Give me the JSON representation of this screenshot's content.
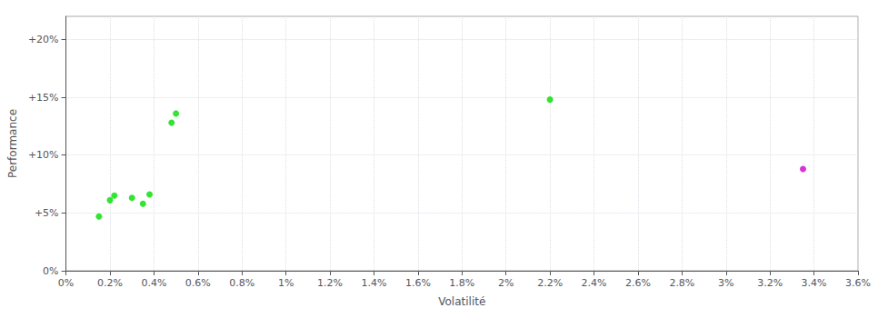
{
  "chart_data": {
    "type": "scatter",
    "xlabel": "Volatilité",
    "ylabel": "Performance",
    "xlim": [
      0,
      0.036
    ],
    "ylim": [
      0,
      0.22
    ],
    "xticks": [
      {
        "value": 0.0,
        "label": "0%"
      },
      {
        "value": 0.002,
        "label": "0.2%"
      },
      {
        "value": 0.004,
        "label": "0.4%"
      },
      {
        "value": 0.006,
        "label": "0.6%"
      },
      {
        "value": 0.008,
        "label": "0.8%"
      },
      {
        "value": 0.01,
        "label": "1%"
      },
      {
        "value": 0.012,
        "label": "1.2%"
      },
      {
        "value": 0.014,
        "label": "1.4%"
      },
      {
        "value": 0.016,
        "label": "1.6%"
      },
      {
        "value": 0.018,
        "label": "1.8%"
      },
      {
        "value": 0.02,
        "label": "2%"
      },
      {
        "value": 0.022,
        "label": "2.2%"
      },
      {
        "value": 0.024,
        "label": "2.4%"
      },
      {
        "value": 0.026,
        "label": "2.6%"
      },
      {
        "value": 0.028,
        "label": "2.8%"
      },
      {
        "value": 0.03,
        "label": "3%"
      },
      {
        "value": 0.032,
        "label": "3.2%"
      },
      {
        "value": 0.034,
        "label": "3.4%"
      },
      {
        "value": 0.036,
        "label": "3.6%"
      }
    ],
    "yticks": [
      {
        "value": 0.0,
        "label": "0%"
      },
      {
        "value": 0.05,
        "label": "+5%"
      },
      {
        "value": 0.1,
        "label": "+10%"
      },
      {
        "value": 0.15,
        "label": "+15%"
      },
      {
        "value": 0.2,
        "label": "+20%"
      }
    ],
    "grid": true,
    "series": [
      {
        "color": "#00dd00",
        "x": [
          0.0015,
          0.002,
          0.0022,
          0.003,
          0.0035,
          0.0038,
          0.0048,
          0.005,
          0.022
        ],
        "values": [
          0.047,
          0.061,
          0.065,
          0.063,
          0.058,
          0.066,
          0.128,
          0.136,
          0.148
        ]
      },
      {
        "color": "#cc00cc",
        "x": [
          0.0335
        ],
        "values": [
          0.088
        ]
      }
    ]
  }
}
